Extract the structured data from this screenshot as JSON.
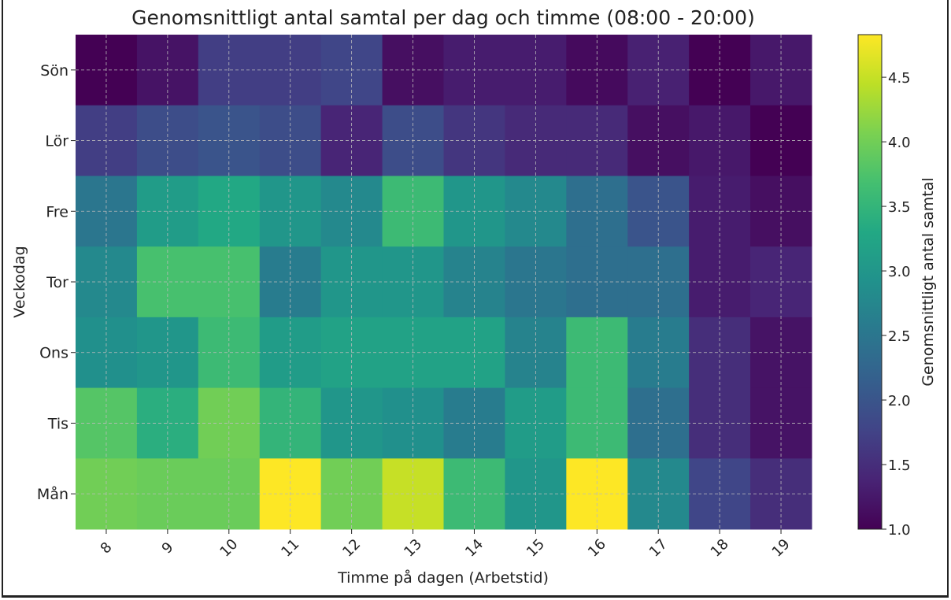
{
  "chart_data": {
    "type": "heatmap",
    "title": "Genomsnittligt antal samtal per dag och timme (08:00 - 20:00)",
    "xlabel": "Timme på dagen (Arbetstid)",
    "ylabel": "Veckodag",
    "x": [
      "8",
      "9",
      "10",
      "11",
      "12",
      "13",
      "14",
      "15",
      "16",
      "17",
      "18",
      "19"
    ],
    "y": [
      "Sön",
      "Lör",
      "Fre",
      "Tor",
      "Ons",
      "Tis",
      "Mån"
    ],
    "values": [
      [
        1.0,
        1.2,
        1.7,
        1.7,
        1.8,
        1.15,
        1.3,
        1.3,
        1.1,
        1.35,
        1.0,
        1.25
      ],
      [
        1.7,
        1.9,
        2.0,
        1.9,
        1.4,
        1.9,
        1.6,
        1.45,
        1.45,
        1.15,
        1.25,
        1.0
      ],
      [
        2.5,
        3.1,
        3.3,
        3.0,
        2.8,
        3.6,
        3.0,
        2.8,
        2.4,
        2.0,
        1.3,
        1.15
      ],
      [
        2.8,
        3.7,
        3.7,
        2.6,
        3.0,
        3.0,
        2.7,
        2.5,
        2.4,
        2.4,
        1.3,
        1.4
      ],
      [
        2.9,
        3.0,
        3.6,
        3.1,
        3.2,
        3.2,
        3.2,
        2.7,
        3.6,
        2.6,
        1.5,
        1.2
      ],
      [
        3.8,
        3.4,
        4.0,
        3.5,
        3.0,
        2.9,
        2.6,
        3.1,
        3.6,
        2.4,
        1.5,
        1.2
      ],
      [
        4.0,
        3.95,
        3.95,
        4.83,
        4.0,
        4.5,
        3.6,
        3.0,
        4.83,
        2.8,
        1.8,
        1.5
      ]
    ],
    "colorbar": {
      "label": "Genomsnittligt antal samtal",
      "range": [
        1.0,
        4.83
      ],
      "ticks": [
        "1.0",
        "1.5",
        "2.0",
        "2.5",
        "3.0",
        "3.5",
        "4.0",
        "4.5"
      ],
      "colormap": "viridis"
    },
    "grid": true
  }
}
